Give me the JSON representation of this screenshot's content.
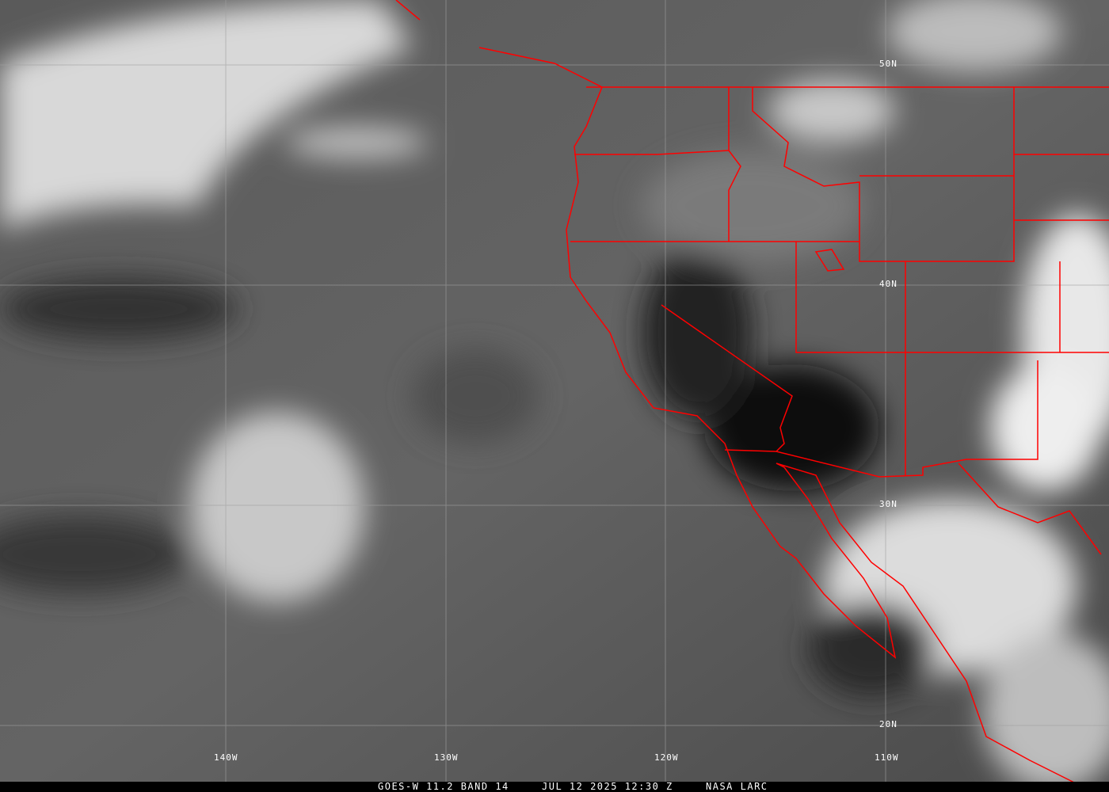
{
  "caption": {
    "product": "GOES-W 11.2 BAND 14",
    "datetime": "JUL 12 2025 12:30 Z",
    "credit": "NASA LARC"
  },
  "lat_labels": [
    "50N",
    "40N",
    "30N",
    "20N"
  ],
  "lon_labels": [
    "140W",
    "130W",
    "120W",
    "110W"
  ],
  "colors": {
    "boundaries": "#ff0000",
    "graticule": "#a0a0a0",
    "caption_bg": "#000000"
  }
}
